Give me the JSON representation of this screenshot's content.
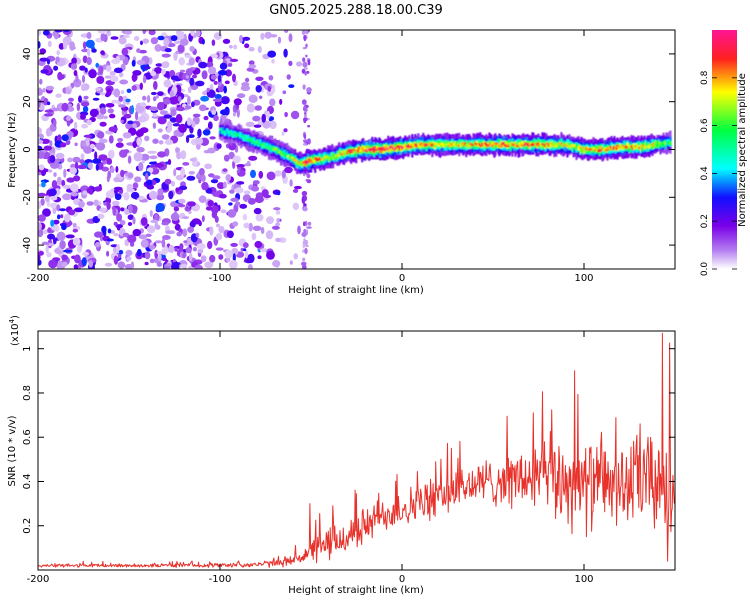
{
  "figure": {
    "title": "GN05.2025.288.18.00.C39"
  },
  "chart_data": [
    {
      "type": "heatmap",
      "name": "spectrogram",
      "xlabel": "Height of straight line (km)",
      "ylabel": "Frequency (Hz)",
      "xlim": [
        -200,
        150
      ],
      "ylim": [
        -50,
        50
      ],
      "xticks": [
        -200,
        -100,
        0,
        100
      ],
      "yticks": [
        -40,
        -20,
        0,
        20,
        40
      ],
      "grid": false,
      "colorbar": {
        "label": "Normalized spectral amplitude",
        "range": [
          0,
          1
        ],
        "ticks": [
          0.0,
          0.2,
          0.4,
          0.6,
          0.8
        ],
        "colors": [
          "#ffffff",
          "#b27cf0",
          "#7a00e8",
          "#1010ff",
          "#00ffff",
          "#00ff40",
          "#ffff00",
          "#ff2020",
          "#ff1493"
        ]
      },
      "noise_region": {
        "x_from": -200,
        "x_to": -52,
        "level": 0.25
      },
      "ridge": {
        "x": [
          -100,
          -90,
          -80,
          -70,
          -62,
          -56,
          -52,
          -45,
          -38,
          -30,
          -22,
          -12,
          0,
          10,
          20,
          30,
          40,
          50,
          60,
          70,
          80,
          90,
          95,
          100,
          110,
          120,
          130,
          140,
          148
        ],
        "freq": [
          8,
          6,
          3,
          0,
          -3,
          -6,
          -5,
          -4,
          -3,
          -1,
          0,
          0,
          1,
          2,
          2,
          2,
          2,
          2,
          2,
          2,
          2,
          2,
          1,
          0,
          0,
          1,
          1,
          2,
          3
        ],
        "amplitude": [
          0.45,
          0.5,
          0.55,
          0.6,
          0.65,
          0.75,
          0.9,
          0.8,
          0.7,
          0.8,
          0.9,
          0.95,
          0.9,
          0.85,
          0.8,
          0.75,
          0.8,
          0.85,
          0.8,
          0.85,
          0.8,
          0.75,
          0.7,
          0.8,
          0.85,
          0.8,
          0.8,
          0.7,
          0.55
        ]
      }
    },
    {
      "type": "line",
      "name": "snr",
      "xlabel": "Height of straight line (km)",
      "ylabel": "SNR (10 * v/v)",
      "multiplier_label": "(x10",
      "multiplier_exponent": "4",
      "multiplier_close": ")",
      "xlim": [
        -200,
        150
      ],
      "ylim": [
        0,
        1.08
      ],
      "xticks": [
        -200,
        -100,
        0,
        100
      ],
      "yticks": [
        0.2,
        0.4,
        0.6,
        0.8,
        1.0
      ],
      "color": "#e8312a",
      "grid": false,
      "envelope": {
        "x": [
          -200,
          -150,
          -100,
          -80,
          -70,
          -60,
          -50,
          -40,
          -30,
          -20,
          -10,
          0,
          10,
          20,
          30,
          40,
          50,
          60,
          70,
          80,
          90,
          100,
          110,
          120,
          130,
          140,
          150
        ],
        "base": [
          0.02,
          0.02,
          0.022,
          0.025,
          0.03,
          0.045,
          0.08,
          0.12,
          0.15,
          0.2,
          0.25,
          0.28,
          0.3,
          0.33,
          0.36,
          0.39,
          0.4,
          0.41,
          0.41,
          0.42,
          0.4,
          0.38,
          0.39,
          0.38,
          0.4,
          0.4,
          0.42
        ],
        "amp": [
          0.01,
          0.01,
          0.012,
          0.015,
          0.02,
          0.03,
          0.06,
          0.1,
          0.1,
          0.1,
          0.1,
          0.1,
          0.11,
          0.11,
          0.12,
          0.12,
          0.13,
          0.15,
          0.18,
          0.22,
          0.25,
          0.25,
          0.22,
          0.22,
          0.25,
          0.3,
          0.32
        ]
      },
      "peaks": [
        {
          "x": -50.5,
          "y": 0.3
        },
        {
          "x": 27,
          "y": 0.55
        },
        {
          "x": 72,
          "y": 0.71
        },
        {
          "x": 95,
          "y": 0.9
        },
        {
          "x": 131,
          "y": 0.66
        },
        {
          "x": 143,
          "y": 1.07
        },
        {
          "x": 146,
          "y": 0.04
        }
      ]
    }
  ]
}
